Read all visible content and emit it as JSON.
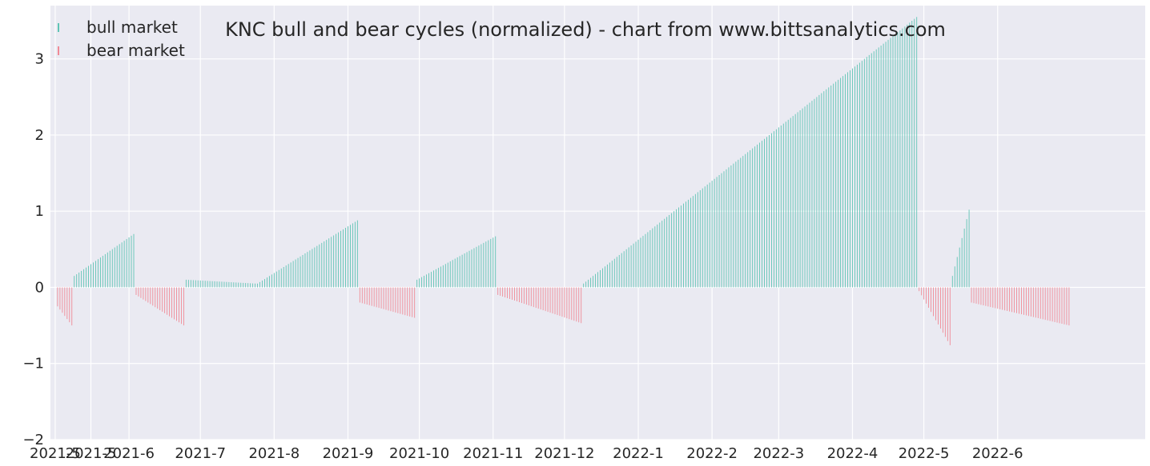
{
  "chart_data": {
    "type": "bar",
    "title": "KNC bull and bear cycles (normalized)  - chart from www.bittsanalytics.com",
    "xlabel": "",
    "ylabel": "",
    "ylim": [
      -2,
      3.7
    ],
    "yticks": [
      -2,
      -1,
      0,
      1,
      2,
      3
    ],
    "ytick_labels": [
      "−2",
      "−1",
      "0",
      "1",
      "2",
      "3"
    ],
    "xlim": [
      "2021-04-29",
      "2022-08-02"
    ],
    "xticks": [
      {
        "date": "2021-05-01",
        "label": "2021-5"
      },
      {
        "date": "2021-05-16",
        "label": "2021-5"
      },
      {
        "date": "2021-06-01",
        "label": "2021-6"
      },
      {
        "date": "2021-07-01",
        "label": "2021-7"
      },
      {
        "date": "2021-08-01",
        "label": "2021-8"
      },
      {
        "date": "2021-09-01",
        "label": "2021-9"
      },
      {
        "date": "2021-10-01",
        "label": "2021-10"
      },
      {
        "date": "2021-11-01",
        "label": "2021-11"
      },
      {
        "date": "2021-12-01",
        "label": "2021-12"
      },
      {
        "date": "2022-01-01",
        "label": "2022-1"
      },
      {
        "date": "2022-02-01",
        "label": "2022-2"
      },
      {
        "date": "2022-03-01",
        "label": "2022-3"
      },
      {
        "date": "2022-04-01",
        "label": "2022-4"
      },
      {
        "date": "2022-05-01",
        "label": "2022-5"
      },
      {
        "date": "2022-06-01",
        "label": "2022-6"
      }
    ],
    "grid": true,
    "legend_position": "top-left",
    "series": [
      {
        "name": "bull market",
        "color": "#5fc4b4"
      },
      {
        "name": "bear market",
        "color": "#f08a96"
      }
    ],
    "cycles": [
      {
        "market": "bear",
        "start": "2021-05-02",
        "end": "2021-05-08",
        "from": -0.25,
        "to": -0.5
      },
      {
        "market": "bull",
        "start": "2021-05-09",
        "end": "2021-06-03",
        "from": 0.15,
        "to": 0.7
      },
      {
        "market": "bear",
        "start": "2021-06-04",
        "end": "2021-06-24",
        "from": -0.1,
        "to": -0.5
      },
      {
        "market": "bull",
        "start": "2021-06-25",
        "end": "2021-07-24",
        "from": 0.1,
        "to": 0.05
      },
      {
        "market": "bull",
        "start": "2021-07-25",
        "end": "2021-09-05",
        "from": 0.05,
        "to": 0.88
      },
      {
        "market": "bear",
        "start": "2021-09-06",
        "end": "2021-09-29",
        "from": -0.2,
        "to": -0.4
      },
      {
        "market": "bull",
        "start": "2021-09-30",
        "end": "2021-11-02",
        "from": 0.1,
        "to": 0.67
      },
      {
        "market": "bear",
        "start": "2021-11-03",
        "end": "2021-12-08",
        "from": -0.1,
        "to": -0.47
      },
      {
        "market": "bull",
        "start": "2021-12-09",
        "end": "2022-04-28",
        "from": 0.05,
        "to": 3.55
      },
      {
        "market": "bear",
        "start": "2022-04-29",
        "end": "2022-05-12",
        "from": -0.05,
        "to": -0.76
      },
      {
        "market": "bull",
        "start": "2022-05-13",
        "end": "2022-05-20",
        "from": 0.15,
        "to": 1.02
      },
      {
        "market": "bear",
        "start": "2022-05-21",
        "end": "2022-07-01",
        "from": -0.2,
        "to": -0.5
      }
    ]
  }
}
